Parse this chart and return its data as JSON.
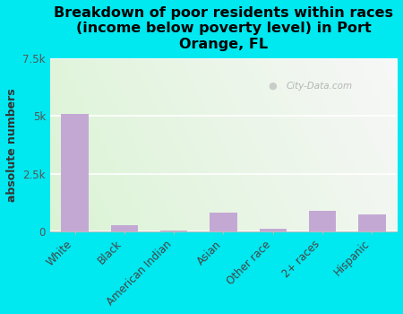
{
  "title": "Breakdown of poor residents within races\n(income below poverty level) in Port\nOrange, FL",
  "categories": [
    "White",
    "Black",
    "American Indian",
    "Asian",
    "Other race",
    "2+ races",
    "Hispanic"
  ],
  "values": [
    5100,
    270,
    30,
    800,
    130,
    900,
    750
  ],
  "bar_color": "#c4a8d4",
  "ylabel": "absolute numbers",
  "ylim": [
    0,
    7500
  ],
  "yticks": [
    0,
    2500,
    5000,
    7500
  ],
  "ytick_labels": [
    "0",
    "2.5k",
    "5k",
    "7.5k"
  ],
  "bg_outer": "#00e8f0",
  "watermark": "City-Data.com",
  "title_fontsize": 11.5,
  "ylabel_fontsize": 9,
  "tick_fontsize": 8.5,
  "gradient_left_color": "#c8e8c0",
  "gradient_right_color": "#f5f8f0"
}
